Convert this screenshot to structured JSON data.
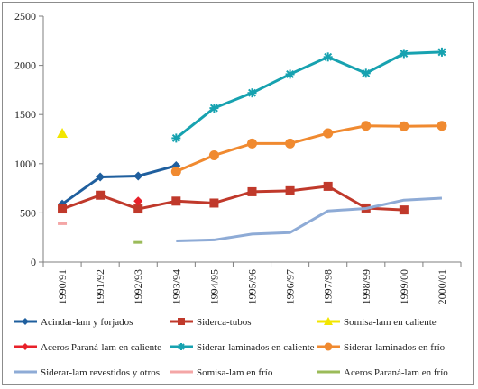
{
  "chart_data": {
    "type": "line",
    "title": "",
    "xlabel": "",
    "ylabel": "",
    "ylim": [
      0,
      2500
    ],
    "yticks": [
      0,
      500,
      1000,
      1500,
      2000,
      2500
    ],
    "grid": false,
    "legend_position": "bottom",
    "categories": [
      "1990/91",
      "1991/92",
      "1992/93",
      "1993/94",
      "1994/95",
      "1995/96",
      "1996/97",
      "1997/98",
      "1998/99",
      "1999/00",
      "2000/01"
    ],
    "series": [
      {
        "name": "Acindar-lam y forjados",
        "color": "#1f5f9e",
        "marker": "diamond",
        "values": [
          590,
          865,
          875,
          980,
          null,
          null,
          null,
          null,
          null,
          null,
          null
        ]
      },
      {
        "name": "Siderca-tubos",
        "color": "#c0392b",
        "marker": "square",
        "values": [
          540,
          680,
          540,
          620,
          600,
          715,
          725,
          770,
          550,
          530,
          null
        ]
      },
      {
        "name": "Somisa-lam en caliente",
        "color": "#f2e600",
        "marker": "triangle",
        "values": [
          1310,
          null,
          null,
          null,
          null,
          null,
          null,
          null,
          null,
          null,
          null
        ]
      },
      {
        "name": "Aceros Paraná-lam en caliente",
        "color": "#e8212a",
        "marker": "diamond",
        "values": [
          null,
          null,
          620,
          null,
          null,
          null,
          null,
          null,
          null,
          null,
          null
        ]
      },
      {
        "name": "Siderar-laminados en caliente",
        "color": "#17a2b0",
        "marker": "asterisk",
        "values": [
          null,
          null,
          null,
          1260,
          1565,
          1720,
          1910,
          2085,
          1920,
          2120,
          2135
        ]
      },
      {
        "name": "Siderar-laminados en frío",
        "color": "#f08a30",
        "marker": "circle",
        "values": [
          null,
          null,
          null,
          920,
          1085,
          1205,
          1205,
          1310,
          1385,
          1380,
          1385
        ]
      },
      {
        "name": "Siderar-lam revestidos y otros",
        "color": "#8eabd6",
        "marker": "dash",
        "values": [
          null,
          null,
          null,
          215,
          225,
          285,
          300,
          520,
          545,
          630,
          650
        ]
      },
      {
        "name": "Somisa-lam en frío",
        "color": "#f4a6a6",
        "marker": "dash",
        "values": [
          390,
          null,
          null,
          null,
          null,
          null,
          null,
          null,
          null,
          null,
          null
        ]
      },
      {
        "name": "Aceros Paraná-lam en frío",
        "color": "#9bbb59",
        "marker": "dash",
        "values": [
          null,
          null,
          200,
          null,
          null,
          null,
          null,
          null,
          null,
          null,
          null
        ]
      }
    ]
  }
}
